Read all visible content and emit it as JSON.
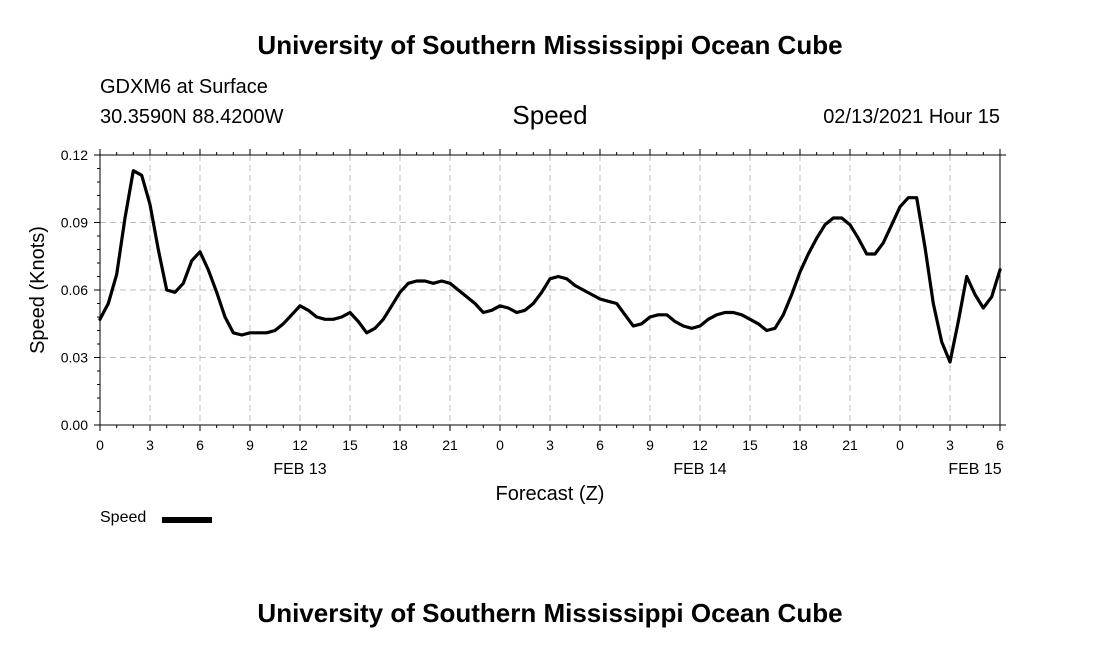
{
  "header": {
    "title": "University of Southern Mississippi Ocean Cube",
    "station": "GDXM6 at Surface",
    "coords": "30.3590N 88.4200W",
    "datetime": "02/13/2021 Hour 15"
  },
  "footer": {
    "title": "University of Southern Mississippi Ocean Cube"
  },
  "legend": {
    "label": "Speed"
  },
  "colors": {
    "line": "#000000",
    "grid": "#bdbdbd",
    "axis": "#000000"
  },
  "chart_data": {
    "type": "line",
    "title": "Speed",
    "xlabel": "Forecast (Z)",
    "ylabel": "Speed (Knots)",
    "ylim": [
      0,
      0.12
    ],
    "yticks": [
      "0.00",
      "0.03",
      "0.06",
      "0.09",
      "0.12"
    ],
    "xlim_hours": [
      0,
      54
    ],
    "xticks": [
      "0",
      "3",
      "6",
      "9",
      "12",
      "15",
      "18",
      "21",
      "0",
      "3",
      "6",
      "9",
      "12",
      "15",
      "18",
      "21",
      "0",
      "3",
      "6"
    ],
    "day_labels": [
      {
        "label": "FEB 13",
        "hour": 12
      },
      {
        "label": "FEB 14",
        "hour": 36
      },
      {
        "label": "FEB 15",
        "hour": 52.5
      }
    ],
    "grid": true,
    "legend_position": "bottom-left",
    "series": [
      {
        "name": "Speed",
        "x": [
          0,
          0.5,
          1,
          1.5,
          2,
          2.5,
          3,
          3.5,
          4,
          4.5,
          5,
          5.5,
          6,
          6.5,
          7,
          7.5,
          8,
          8.5,
          9,
          9.5,
          10,
          10.5,
          11,
          11.5,
          12,
          12.5,
          13,
          13.5,
          14,
          14.5,
          15,
          15.5,
          16,
          16.5,
          17,
          17.5,
          18,
          18.5,
          19,
          19.5,
          20,
          20.5,
          21,
          21.5,
          22,
          22.5,
          23,
          23.5,
          24,
          24.5,
          25,
          25.5,
          26,
          26.5,
          27,
          27.5,
          28,
          28.5,
          29,
          29.5,
          30,
          30.5,
          31,
          31.5,
          32,
          32.5,
          33,
          33.5,
          34,
          34.5,
          35,
          35.5,
          36,
          36.5,
          37,
          37.5,
          38,
          38.5,
          39,
          39.5,
          40,
          40.5,
          41,
          41.5,
          42,
          42.5,
          43,
          43.5,
          44,
          44.5,
          45,
          45.5,
          46,
          46.5,
          47,
          47.5,
          48,
          48.5,
          49,
          49.5,
          50,
          50.5,
          51,
          51.5,
          52,
          52.5,
          53,
          53.5,
          54
        ],
        "values": [
          0.047,
          0.054,
          0.067,
          0.092,
          0.113,
          0.111,
          0.098,
          0.078,
          0.06,
          0.059,
          0.063,
          0.073,
          0.077,
          0.069,
          0.059,
          0.048,
          0.041,
          0.04,
          0.041,
          0.041,
          0.041,
          0.042,
          0.045,
          0.049,
          0.053,
          0.051,
          0.048,
          0.047,
          0.047,
          0.048,
          0.05,
          0.046,
          0.041,
          0.043,
          0.047,
          0.053,
          0.059,
          0.063,
          0.064,
          0.064,
          0.063,
          0.064,
          0.063,
          0.06,
          0.057,
          0.054,
          0.05,
          0.051,
          0.053,
          0.052,
          0.05,
          0.051,
          0.054,
          0.059,
          0.065,
          0.066,
          0.065,
          0.062,
          0.06,
          0.058,
          0.056,
          0.055,
          0.054,
          0.049,
          0.044,
          0.045,
          0.048,
          0.049,
          0.049,
          0.046,
          0.044,
          0.043,
          0.044,
          0.047,
          0.049,
          0.05,
          0.05,
          0.049,
          0.047,
          0.045,
          0.042,
          0.043,
          0.049,
          0.058,
          0.068,
          0.076,
          0.083,
          0.089,
          0.092,
          0.092,
          0.089,
          0.083,
          0.076,
          0.076,
          0.081,
          0.089,
          0.097,
          0.101,
          0.101,
          0.079,
          0.054,
          0.037,
          0.028,
          0.046,
          0.066,
          0.058,
          0.052,
          0.057,
          0.069
        ]
      }
    ]
  }
}
